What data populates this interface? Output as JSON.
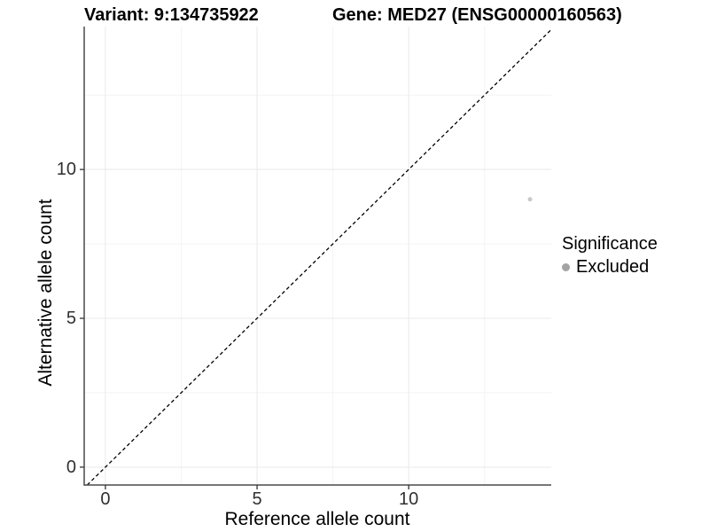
{
  "titles": {
    "variant": "Variant: 9:134735922",
    "gene": "Gene: MED27 (ENSG00000160563)"
  },
  "legend": {
    "title": "Significance",
    "items": [
      {
        "label": "Excluded",
        "dot_color": "#a3a3a3"
      }
    ]
  },
  "colors": {
    "background": "#ffffff",
    "title_text": "#000000",
    "axis_line": "#4a4a4a",
    "tick_mark": "#333333",
    "tick_label": "#303030",
    "grid_major": "#e9e9e9",
    "grid_minor": "#f4f4f4",
    "identity_line": "#000000",
    "point": "#c9c9c9"
  },
  "chart_data": {
    "type": "scatter",
    "title": "Variant: 9:134735922  |  Gene: MED27 (ENSG00000160563)",
    "xlabel": "Reference allele count",
    "ylabel": "Alternative allele count",
    "xlim": [
      -0.7,
      14.7
    ],
    "ylim": [
      -0.6,
      14.8
    ],
    "x_ticks": [
      0,
      5,
      10
    ],
    "y_ticks": [
      0,
      5,
      10
    ],
    "x_minor_gridlines": [
      2.5,
      7.5,
      12.5
    ],
    "y_minor_gridlines": [
      2.5,
      7.5,
      12.5
    ],
    "grid": true,
    "legend_position": "right",
    "series": [
      {
        "name": "Excluded",
        "points": [
          {
            "x": 14,
            "y": 9
          }
        ],
        "color": "#c9c9c9"
      }
    ],
    "reference_line": {
      "kind": "identity",
      "style": "dashed",
      "from": -0.6,
      "to": 14.7,
      "color": "#000000"
    }
  }
}
